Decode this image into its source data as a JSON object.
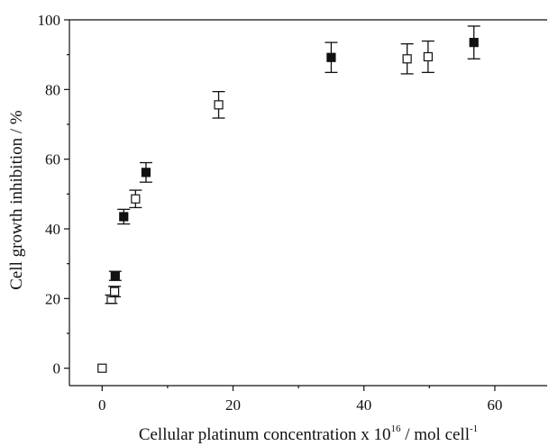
{
  "chart_data": {
    "type": "scatter",
    "title": "",
    "xlabel": "Cellular platinum concentration x 10",
    "xlabel_exp1": "16",
    "xlabel_unit": " / mol cell",
    "xlabel_exp2": "-1",
    "ylabel": "Cell growth inhibition / %",
    "xlim": [
      -5,
      68
    ],
    "ylim": [
      -5,
      100
    ],
    "xticks": [
      0,
      20,
      40,
      60
    ],
    "yticks": [
      0,
      20,
      40,
      60,
      80,
      100
    ],
    "grid": false,
    "legend": "none",
    "series": [
      {
        "marker": "filled-square",
        "color": "#111111",
        "points": [
          {
            "x": 2.0,
            "y": 26.5,
            "err": 1.3
          },
          {
            "x": 3.3,
            "y": 43.5,
            "err": 2.1
          },
          {
            "x": 6.7,
            "y": 56.2,
            "err": 2.8
          },
          {
            "x": 35.0,
            "y": 89.2,
            "err": 4.3
          },
          {
            "x": 56.8,
            "y": 93.5,
            "err": 4.7
          }
        ]
      },
      {
        "marker": "open-square",
        "color": "#111111",
        "points": [
          {
            "x": 0.0,
            "y": 0.0,
            "err": 0
          },
          {
            "x": 1.4,
            "y": 19.8,
            "err": 1.2
          },
          {
            "x": 1.9,
            "y": 22.0,
            "err": 1.5
          },
          {
            "x": 5.1,
            "y": 48.6,
            "err": 2.5
          },
          {
            "x": 17.8,
            "y": 75.6,
            "err": 3.8
          },
          {
            "x": 46.6,
            "y": 88.8,
            "err": 4.3
          },
          {
            "x": 49.8,
            "y": 89.4,
            "err": 4.5
          }
        ]
      }
    ]
  }
}
